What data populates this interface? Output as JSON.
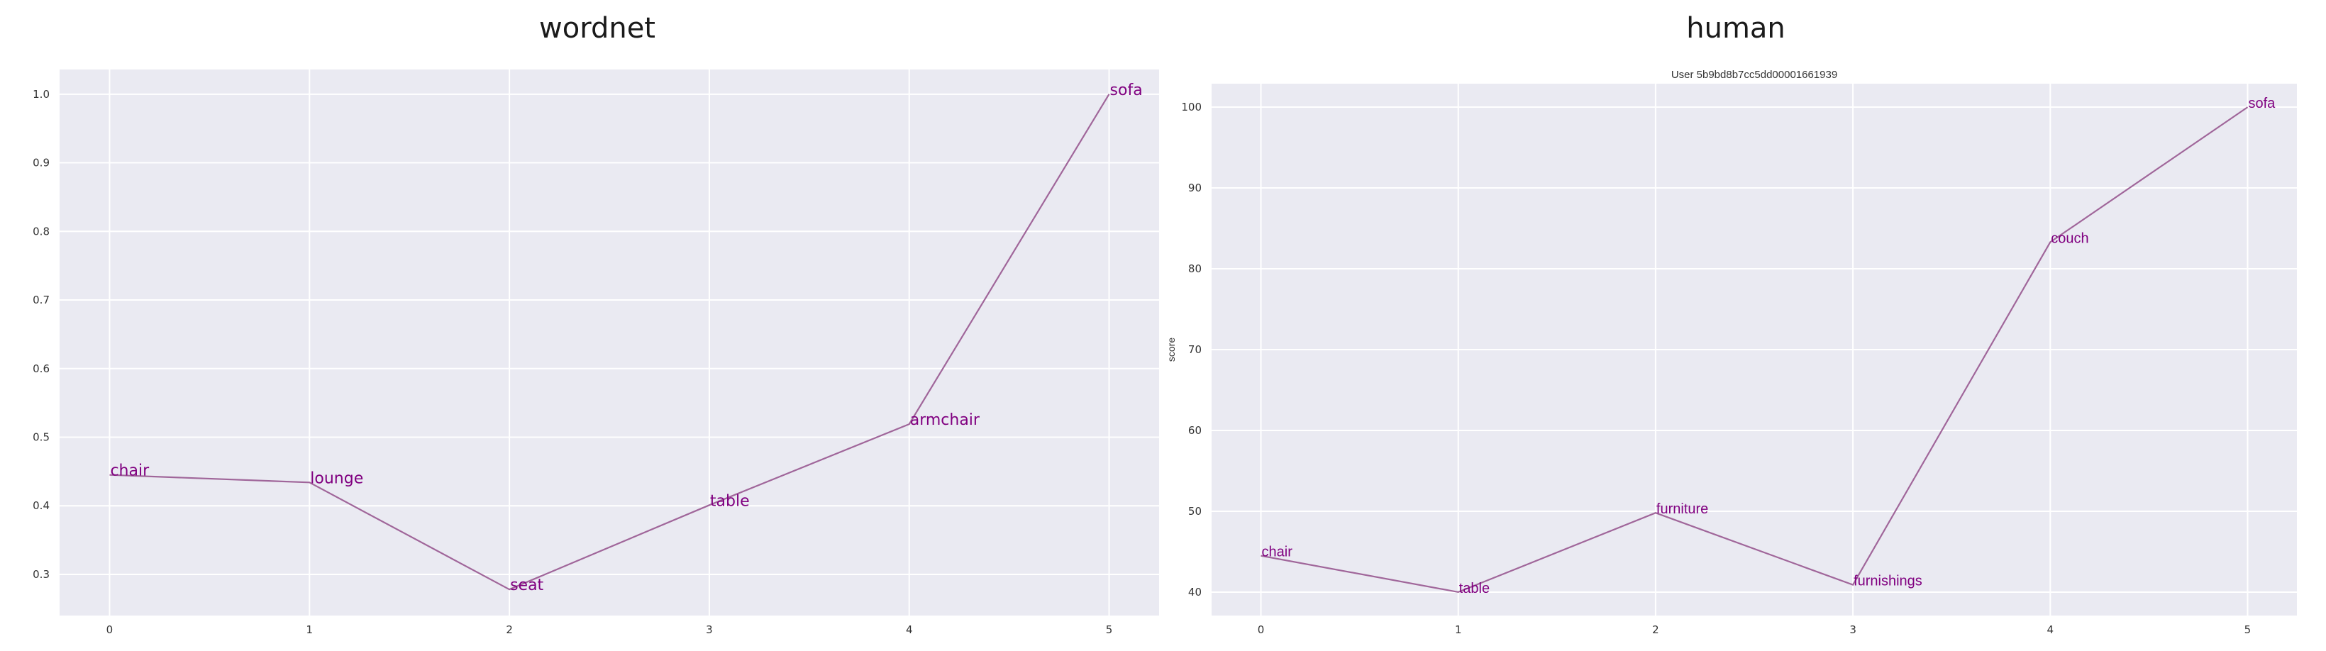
{
  "panel_titles": [
    "wordnet",
    "human"
  ],
  "colors": {
    "plot_background": "#eaeaf2",
    "grid": "#ffffff",
    "line": "#a0669a",
    "label": "#800080"
  },
  "chart_data": [
    {
      "type": "line",
      "title": "wordnet",
      "subtitle": "",
      "xlabel": "",
      "ylabel": "",
      "x": [
        0,
        1,
        2,
        3,
        4,
        5
      ],
      "values": [
        0.445,
        0.434,
        0.278,
        0.401,
        0.519,
        1.0
      ],
      "point_labels": [
        "chair",
        "lounge",
        "seat",
        "table",
        "armchair",
        "sofa"
      ],
      "xticks": [
        "0",
        "1",
        "2",
        "3",
        "4",
        "5"
      ],
      "yticks": [
        "0.3",
        "0.4",
        "0.5",
        "0.6",
        "0.7",
        "0.8",
        "0.9",
        "1.0"
      ],
      "xlim": [
        -0.25,
        5.25
      ],
      "ylim": [
        0.24,
        1.036
      ],
      "grid": true,
      "legend": "none"
    },
    {
      "type": "line",
      "title": "human",
      "subtitle": "User 5b9bd8b7cc5dd00001661939",
      "xlabel": "",
      "ylabel": "score",
      "x": [
        0,
        1,
        2,
        3,
        4,
        5
      ],
      "values": [
        44.5,
        40.0,
        49.8,
        40.9,
        83.3,
        100.0
      ],
      "point_labels": [
        "chair",
        "table",
        "furniture",
        "furnishings",
        "couch",
        "sofa"
      ],
      "xticks": [
        "0",
        "1",
        "2",
        "3",
        "4",
        "5"
      ],
      "yticks": [
        "40",
        "50",
        "60",
        "70",
        "80",
        "90",
        "100"
      ],
      "xlim": [
        -0.25,
        5.25
      ],
      "ylim": [
        37.1,
        102.9
      ],
      "grid": true,
      "legend": "none"
    }
  ]
}
